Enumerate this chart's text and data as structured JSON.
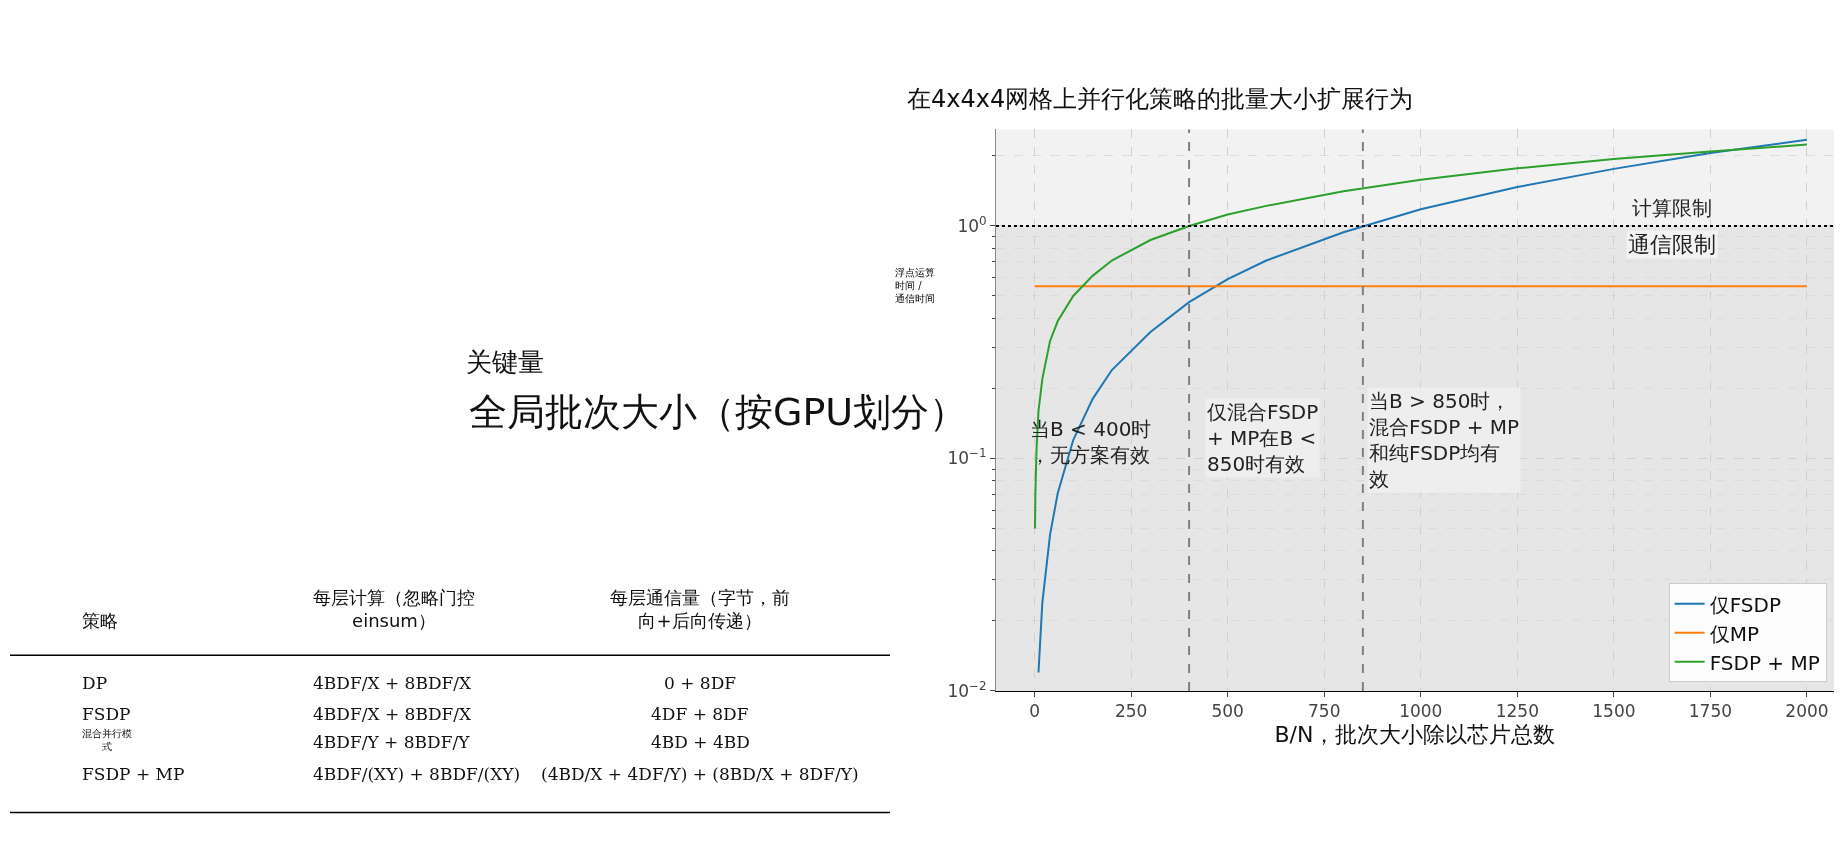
{
  "chart_data": {
    "type": "line",
    "title": "在4x4x4网格上并行化策略的批量大小扩展行为",
    "xlabel": "B/N，批次大小除以芯片总数",
    "ylabel": "浮点运算时间 / 通信时间",
    "series": [
      {
        "name": "仅FSDP",
        "color": "#1f77b4",
        "x": [
          10,
          20,
          40,
          60,
          100,
          150,
          200,
          300,
          400,
          500,
          600,
          800,
          1000,
          1250,
          1500,
          1750,
          2000
        ],
        "values": [
          0.012,
          0.024,
          0.047,
          0.071,
          0.12,
          0.18,
          0.24,
          0.35,
          0.47,
          0.59,
          0.71,
          0.94,
          1.18,
          1.47,
          1.76,
          2.06,
          2.35
        ]
      },
      {
        "name": "仅MP",
        "color": "#ff7f0e",
        "x": [
          0,
          2000
        ],
        "values": [
          0.55,
          0.55
        ]
      },
      {
        "name": "FSDP + MP",
        "color": "#2ca02c",
        "x": [
          1,
          2,
          5,
          10,
          20,
          40,
          60,
          100,
          150,
          200,
          300,
          400,
          500,
          600,
          800,
          1000,
          1250,
          1500,
          1750,
          2000
        ],
        "values": [
          0.05,
          0.071,
          0.11,
          0.16,
          0.22,
          0.32,
          0.39,
          0.5,
          0.61,
          0.71,
          0.87,
          1.0,
          1.12,
          1.22,
          1.41,
          1.58,
          1.77,
          1.94,
          2.09,
          2.24
        ]
      }
    ],
    "xlim": [
      -100,
      2070
    ],
    "xticks": [
      0,
      250,
      500,
      750,
      1000,
      1250,
      1500,
      1750,
      2000
    ],
    "ylim": [
      0.01,
      2.6
    ],
    "log": true,
    "yticks": [
      {
        "value": 0.01,
        "label": "10$^{−2}$"
      },
      {
        "value": 0.1,
        "label": "10$^{−1}$"
      },
      {
        "value": 1,
        "label": "10$^{0}$"
      }
    ],
    "ref_lines": [
      {
        "axis": "y",
        "value": 1,
        "label": "计算限制",
        "color": "#000000",
        "line_style": "dotted"
      },
      {
        "axis": "x",
        "value": 400,
        "color": "#808080",
        "line_style": "dashed"
      },
      {
        "axis": "x",
        "value": 850,
        "color": "#808080",
        "line_style": "dashed"
      }
    ],
    "bands": [
      {
        "axis": "y",
        "from": 0.01,
        "to": 1,
        "label": "通信限制",
        "color": "#e6e6e6"
      }
    ],
    "grid": true,
    "legend": "bottom right",
    "line_style": "solid",
    "marker": "none",
    "annotations": [
      "关键量",
      "全局批次大小（按GPU划分）",
      "策略",
      "每层计算（忽略门控einsum）",
      "每层通信量（字节，前向+后向传递）",
      "DP",
      "4BDF/X + 8BDF/X",
      "0 + 8DF",
      "FSDP",
      "4BDF/X + 8BDF/X",
      "4DF + 8DF",
      "混合并行模式",
      "4BDF/Y + 8BDF/Y",
      "4BD + 4BD",
      "FSDP + MP",
      "4BDF/(XY) + 8BDF/(XY)",
      "(4BD/X + 4DF/Y) + (8BD/X + 8DF/Y)",
      "当B < 400时，无方案有效",
      "仅混合FSDP + MP在B < 850时有效",
      "当B > 850时，混合FSDP + MP和纯FSDP均有效"
    ]
  }
}
